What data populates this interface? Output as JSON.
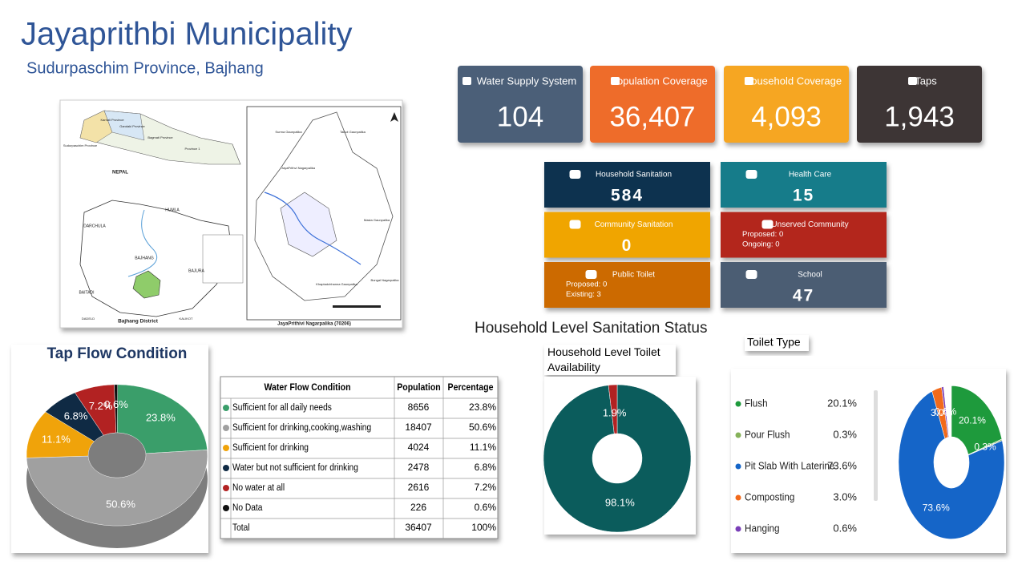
{
  "header": {
    "title": "Jayaprithbi Municipality",
    "subtitle": "Sudurpaschim Province, Bajhang"
  },
  "kpis": [
    {
      "label": "Water Supply System",
      "value": "104",
      "color": "#4b5f78"
    },
    {
      "label": "Population Coverage",
      "value": "36,407",
      "color": "#ee6c2c"
    },
    {
      "label": "Household Coverage",
      "value": "4,093",
      "color": "#f6a623"
    },
    {
      "label": "Taps",
      "value": "1,943",
      "color": "#3d3535"
    }
  ],
  "facilities": [
    {
      "label": "Household Sanitation",
      "value": "584",
      "color": "#0f3350"
    },
    {
      "label": "Health Care",
      "value": "15",
      "color": "#177b8a"
    },
    {
      "label": "Community Sanitation",
      "value": "0",
      "color": "#f0a500"
    },
    {
      "label": "Unserved Community",
      "lines": [
        "Proposed: 0",
        "Ongoing: 0"
      ],
      "color": "#b3261e"
    },
    {
      "label": "Public Toilet",
      "lines": [
        "Proposed: 0",
        "Existing: 3"
      ],
      "color": "#cc6a00"
    },
    {
      "label": "School",
      "value": "47",
      "color": "#4b5d73"
    }
  ],
  "map": {
    "labels": [
      "NEPAL",
      "Karnali Province",
      "Gandaki Province",
      "Bagmati Province",
      "Sudurpaschim Province",
      "Province 1",
      "DARCHULA",
      "HUMLA",
      "BAJHANG",
      "BAJURA",
      "BAITADI",
      "DADELD",
      "KALIKOT",
      "Bajhang District",
      "JayaPrithivi Nagarpalika (70206)",
      "Surma Gaunpalika",
      "Talkot Gaunpalika",
      "JayaPrithvi Nagarpalika",
      "Masta Gaunpalika",
      "Khaptadchhanna Gaunpalika",
      "Bungal Nagarpalika"
    ]
  },
  "table": {
    "header": [
      "Water Flow Condition",
      "Population",
      "Percentage"
    ],
    "rows": [
      [
        "Sufficient for all daily needs",
        "8656",
        "23.8%"
      ],
      [
        "Sufficient for drinking,cooking,washing",
        "18407",
        "50.6%"
      ],
      [
        "Sufficient for drinking",
        "4024",
        "11.1%"
      ],
      [
        "Water but not sufficient for drinking",
        "2478",
        "6.8%"
      ],
      [
        "No water at all",
        "2616",
        "7.2%"
      ],
      [
        "No Data",
        "226",
        "0.6%"
      ],
      [
        "Total",
        "36407",
        "100%"
      ]
    ]
  },
  "section_title": "Household Level Sanitation Status",
  "chart_data": [
    {
      "type": "pie",
      "title": "Tap Flow Condition",
      "values": [
        23.8,
        50.6,
        11.1,
        6.8,
        7.2,
        0.6
      ],
      "value_labels": [
        "23.8%",
        "50.6%",
        "11.1%",
        "6.8%",
        "7.2%",
        "0.6%"
      ],
      "colors": [
        "#3a9e6a",
        "#a0a0a0",
        "#f0a30a",
        "#0f2a44",
        "#b22222",
        "#111111"
      ]
    },
    {
      "type": "donut",
      "title": "Household Level Toilet Availability",
      "values": [
        98.1,
        1.9
      ],
      "value_labels": [
        "98.1%",
        "1.9%"
      ],
      "colors": [
        "#0b5c5c",
        "#b22222"
      ]
    },
    {
      "type": "donut",
      "title": "Toilet Type",
      "categories": [
        "Flush",
        "Pour Flush",
        "Pit Slab With Laterine",
        "Composting",
        "Hanging"
      ],
      "values": [
        20.1,
        0.3,
        73.6,
        3.0,
        0.6
      ],
      "value_labels": [
        "20.1%",
        "0.3%",
        "73.6%",
        "3.0%",
        "0.6%"
      ],
      "colors": [
        "#1e9a3c",
        "#86b25a",
        "#1565c8",
        "#f26a1b",
        "#7a3fb8"
      ]
    }
  ]
}
